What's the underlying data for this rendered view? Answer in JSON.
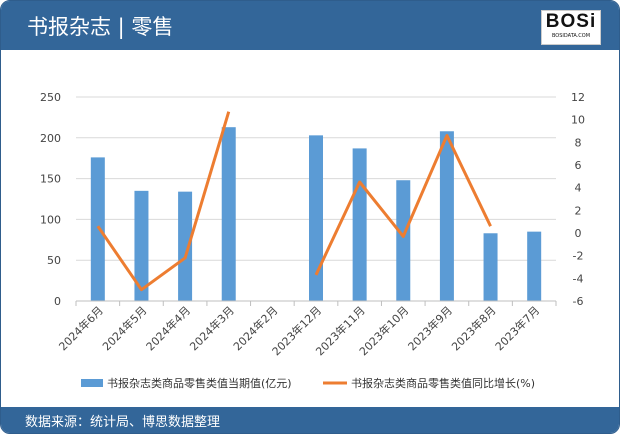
{
  "header": {
    "title": "书报杂志 | 零售",
    "logo_text": "BOSi",
    "logo_sub": "BOSIDATA.COM"
  },
  "footer": {
    "source": "数据来源：统计局、博思数据整理"
  },
  "colors": {
    "bar": "#5b9bd5",
    "line": "#ed7d31",
    "header": "#336699"
  },
  "chart_data": {
    "type": "bar+line",
    "categories": [
      "2024年6月",
      "2024年5月",
      "2024年4月",
      "2024年3月",
      "2024年2月",
      "2023年12月",
      "2023年11月",
      "2023年10月",
      "2023年9月",
      "2023年8月",
      "2023年7月"
    ],
    "series": [
      {
        "name": "书报杂志类商品零售类值当期值(亿元)",
        "type": "bar",
        "axis": "left",
        "values": [
          176,
          135,
          134,
          213,
          null,
          203,
          187,
          148,
          208,
          83,
          85
        ]
      },
      {
        "name": "书报杂志类商品零售类值同比增长(%)",
        "type": "line",
        "axis": "right",
        "values": [
          0.6,
          -5.0,
          -2.2,
          10.7,
          null,
          -3.7,
          4.5,
          -0.3,
          8.6,
          0.6,
          null
        ]
      }
    ],
    "left_axis": {
      "ylim": [
        0,
        250
      ],
      "ticks": [
        "0",
        "50",
        "100",
        "150",
        "200",
        "250"
      ]
    },
    "right_axis": {
      "ylim": [
        -6,
        12
      ],
      "ticks": [
        "-6",
        "-4",
        "-2",
        "0",
        "2",
        "4",
        "6",
        "8",
        "10",
        "12"
      ]
    },
    "grid": true,
    "legend": "bottom"
  }
}
